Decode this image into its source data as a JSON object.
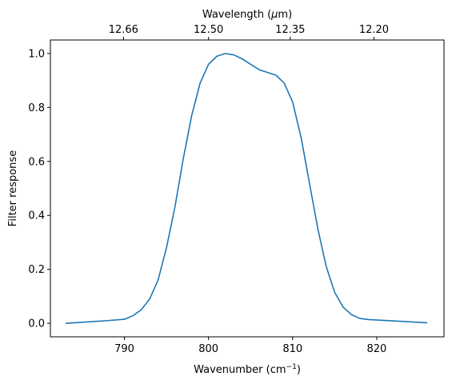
{
  "chart_data": {
    "type": "line",
    "title": "",
    "xlabel": "Wavenumber (cm",
    "xlabel_sup": "−1",
    "xlabel_suffix": ")",
    "ylabel": "Filter response",
    "top_xlabel_prefix": "Wavelength (",
    "top_xlabel_mu": "μ",
    "top_xlabel_suffix": "m)",
    "xlim": [
      781.2,
      828.0
    ],
    "ylim": [
      -0.05,
      1.05
    ],
    "xticks": [
      790,
      800,
      810,
      820
    ],
    "xtick_labels": [
      "790",
      "800",
      "810",
      "820"
    ],
    "yticks": [
      0.0,
      0.2,
      0.4,
      0.6,
      0.8,
      1.0
    ],
    "ytick_labels": [
      "0.0",
      "0.2",
      "0.4",
      "0.6",
      "0.8",
      "1.0"
    ],
    "top_xticks_wavelength_um": [
      12.66,
      12.5,
      12.35,
      12.2
    ],
    "top_xtick_labels": [
      "12.66",
      "12.50",
      "12.35",
      "12.20"
    ],
    "grid": false,
    "line_color": "#1f77b4",
    "series": [
      {
        "x": [
          783.0,
          788.0,
          790.0,
          791.0,
          792.0,
          793.0,
          794.0,
          795.0,
          796.0,
          797.0,
          798.0,
          799.0,
          800.0,
          801.0,
          802.0,
          803.0,
          804.0,
          805.0,
          806.0,
          807.0,
          808.0,
          809.0,
          810.0,
          811.0,
          812.0,
          813.0,
          814.0,
          815.0,
          816.0,
          817.0,
          818.0,
          819.0,
          826.0
        ],
        "y": [
          0.0,
          0.01,
          0.015,
          0.028,
          0.05,
          0.09,
          0.16,
          0.28,
          0.43,
          0.61,
          0.77,
          0.89,
          0.96,
          0.99,
          1.0,
          0.995,
          0.98,
          0.96,
          0.94,
          0.93,
          0.92,
          0.89,
          0.82,
          0.69,
          0.52,
          0.35,
          0.21,
          0.115,
          0.06,
          0.032,
          0.018,
          0.014,
          0.002
        ]
      }
    ]
  }
}
